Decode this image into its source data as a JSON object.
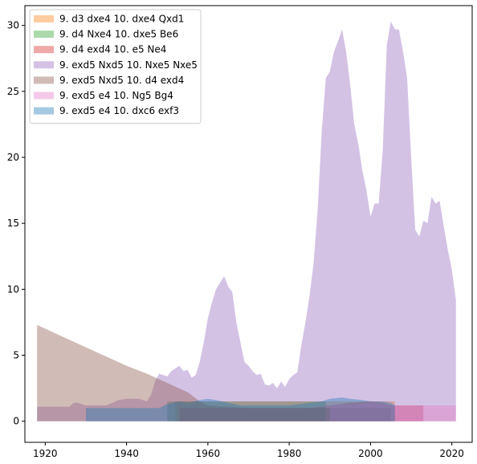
{
  "chart_data": {
    "type": "area",
    "title": "",
    "xlabel": "",
    "ylabel": "",
    "xlim": [
      1915,
      2025
    ],
    "ylim": [
      -1.6,
      31.5
    ],
    "x_ticks": [
      1920,
      1940,
      1960,
      1980,
      2000,
      2020
    ],
    "y_ticks": [
      0,
      5,
      10,
      15,
      20,
      25,
      30
    ],
    "grid": false,
    "legend_position": "top-left",
    "stacked": false,
    "series": [
      {
        "name": "9. d3 dxe4 10. dxe4 Qxd1",
        "color": "#ff7f0e",
        "x": [
          1952,
          1955,
          1960,
          1965,
          1970,
          1975,
          1980,
          1985,
          1990,
          1995,
          2000,
          2005,
          2006
        ],
        "y": [
          1.5,
          1.5,
          1.5,
          1.5,
          1.5,
          1.5,
          1.5,
          1.5,
          1.5,
          1.5,
          1.5,
          1.5,
          1.5
        ]
      },
      {
        "name": "9. d4 Nxe4 10. dxe5 Be6",
        "color": "#2ca02c",
        "x": [
          1950,
          1955,
          1960,
          1965,
          1970,
          1975,
          1980,
          1985,
          1989
        ],
        "y": [
          1.5,
          1.5,
          1.5,
          1.5,
          1.5,
          1.5,
          1.5,
          1.5,
          1.5
        ]
      },
      {
        "name": "9. d4 exd4 10. e5 Ne4",
        "color": "#d62728",
        "x": [
          1953,
          1956,
          1960,
          1965,
          1970,
          1975,
          1980,
          1985,
          1990,
          1995,
          2000,
          2003,
          2005,
          2008,
          2010,
          2013
        ],
        "y": [
          1.0,
          1.0,
          1.0,
          1.0,
          1.0,
          1.0,
          1.0,
          1.0,
          1.2,
          1.4,
          1.5,
          1.4,
          1.2,
          1.2,
          1.2,
          1.2
        ]
      },
      {
        "name": "9. exd5 Nxd5 10. Nxe5 Nxe5",
        "color": "#9467bd",
        "x": [
          1918,
          1926,
          1927,
          1928,
          1930,
          1935,
          1938,
          1940,
          1943,
          1945,
          1946,
          1947,
          1948,
          1949,
          1950,
          1951,
          1952,
          1953,
          1954,
          1955,
          1956,
          1957,
          1958,
          1959,
          1960,
          1961,
          1962,
          1963,
          1964,
          1965,
          1966,
          1967,
          1968,
          1969,
          1970,
          1971,
          1972,
          1973,
          1974,
          1975,
          1976,
          1977,
          1978,
          1979,
          1980,
          1981,
          1982,
          1983,
          1984,
          1985,
          1986,
          1987,
          1988,
          1989,
          1990,
          1991,
          1992,
          1993,
          1994,
          1995,
          1996,
          1997,
          1998,
          1999,
          2000,
          2001,
          2002,
          2003,
          2004,
          2005,
          2006,
          2007,
          2008,
          2009,
          2010,
          2011,
          2012,
          2013,
          2014,
          2015,
          2016,
          2017,
          2018,
          2019,
          2020,
          2021
        ],
        "y": [
          1.1,
          1.1,
          1.4,
          1.4,
          1.2,
          1.2,
          1.6,
          1.7,
          1.7,
          1.5,
          2.0,
          3.0,
          3.6,
          3.5,
          3.4,
          3.8,
          4.0,
          4.2,
          3.8,
          3.9,
          3.3,
          3.5,
          4.5,
          6.0,
          7.8,
          9.0,
          10.0,
          10.5,
          11.0,
          10.2,
          9.8,
          7.5,
          6.0,
          4.5,
          4.2,
          3.8,
          3.5,
          3.6,
          2.8,
          2.7,
          2.9,
          2.5,
          3.0,
          2.6,
          3.2,
          3.5,
          3.7,
          5.8,
          7.5,
          9.5,
          12.0,
          16.0,
          22.0,
          26.0,
          26.5,
          28.0,
          28.8,
          29.7,
          28.0,
          25.5,
          22.5,
          21.0,
          19.0,
          17.5,
          15.5,
          16.5,
          16.5,
          20.5,
          28.5,
          30.3,
          29.7,
          29.7,
          28.0,
          26.0,
          20.0,
          14.5,
          14.0,
          15.2,
          15.0,
          17.0,
          16.5,
          16.7,
          14.8,
          13.0,
          11.5,
          9.2
        ]
      },
      {
        "name": "9. exd5 Nxd5 10. d4 exd4",
        "color": "#8c564b",
        "x": [
          1918,
          1925,
          1930,
          1935,
          1940,
          1945,
          1950,
          1955,
          1958,
          1960,
          1965,
          1970,
          1975,
          1980,
          1985,
          1990,
          1995,
          2000,
          2005
        ],
        "y": [
          7.3,
          6.3,
          5.6,
          4.9,
          4.2,
          3.6,
          2.9,
          2.2,
          1.5,
          1.2,
          1.1,
          1.0,
          1.0,
          1.0,
          1.0,
          1.0,
          1.0,
          1.0,
          1.0
        ]
      },
      {
        "name": "9. exd5 e4 10. Ng5 Bg4",
        "color": "#e377c2",
        "x": [
          1990,
          1995,
          2000,
          2003,
          2005,
          2008,
          2010,
          2013,
          2015,
          2018,
          2020,
          2021
        ],
        "y": [
          1.2,
          1.2,
          1.4,
          1.3,
          1.2,
          1.2,
          1.2,
          1.2,
          1.2,
          1.2,
          1.2,
          1.2
        ]
      },
      {
        "name": "9. exd5 e4 10. dxc6 exf3",
        "color": "#1f77b4",
        "x": [
          1930,
          1935,
          1940,
          1945,
          1948,
          1950,
          1953,
          1955,
          1958,
          1960,
          1962,
          1965,
          1968,
          1970,
          1975,
          1980,
          1985,
          1988,
          1990,
          1993,
          1995,
          1998,
          2000,
          2003,
          2005,
          2006
        ],
        "y": [
          1.0,
          1.0,
          1.0,
          1.0,
          1.0,
          1.3,
          1.5,
          1.4,
          1.6,
          1.7,
          1.6,
          1.4,
          1.2,
          1.2,
          1.2,
          1.2,
          1.4,
          1.5,
          1.7,
          1.8,
          1.7,
          1.6,
          1.5,
          1.5,
          1.4,
          1.2
        ]
      }
    ]
  }
}
